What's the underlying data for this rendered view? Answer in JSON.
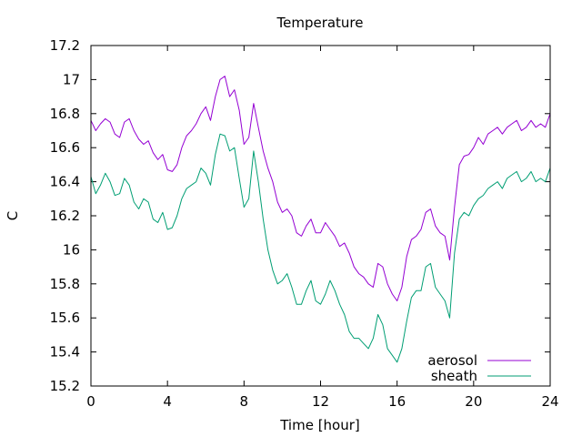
{
  "chart_data": {
    "type": "line",
    "title": "Temperature",
    "xlabel": "Time [hour]",
    "ylabel": "C",
    "xlim": [
      0,
      24
    ],
    "ylim": [
      15.2,
      17.2
    ],
    "xticks": [
      0,
      4,
      8,
      12,
      16,
      20,
      24
    ],
    "xtick_labels": [
      "0",
      "4",
      "8",
      "12",
      "16",
      "20",
      "24"
    ],
    "yticks": [
      15.2,
      15.4,
      15.6,
      15.8,
      16,
      16.2,
      16.4,
      16.6,
      16.8,
      17,
      17.2
    ],
    "ytick_labels": [
      "15.2",
      "15.4",
      "15.6",
      "15.8",
      "16",
      "16.2",
      "16.4",
      "16.6",
      "16.8",
      "17",
      "17.2"
    ],
    "grid": false,
    "legend_position": "bottom-right",
    "series": [
      {
        "name": "aerosol",
        "color": "#9400d3",
        "x": [
          0,
          0.25,
          0.5,
          0.75,
          1,
          1.25,
          1.5,
          1.75,
          2,
          2.25,
          2.5,
          2.75,
          3,
          3.25,
          3.5,
          3.75,
          4,
          4.25,
          4.5,
          4.75,
          5,
          5.25,
          5.5,
          5.75,
          6,
          6.25,
          6.5,
          6.75,
          7,
          7.25,
          7.5,
          7.75,
          8,
          8.25,
          8.5,
          8.75,
          9,
          9.25,
          9.5,
          9.75,
          10,
          10.25,
          10.5,
          10.75,
          11,
          11.25,
          11.5,
          11.75,
          12,
          12.25,
          12.5,
          12.75,
          13,
          13.25,
          13.5,
          13.75,
          14,
          14.25,
          14.5,
          14.75,
          15,
          15.25,
          15.5,
          15.75,
          16,
          16.25,
          16.5,
          16.75,
          17,
          17.25,
          17.5,
          17.75,
          18,
          18.25,
          18.5,
          18.75,
          19,
          19.25,
          19.5,
          19.75,
          20,
          20.25,
          20.5,
          20.75,
          21,
          21.25,
          21.5,
          21.75,
          22,
          22.25,
          22.5,
          22.75,
          23,
          23.25,
          23.5,
          23.75,
          24
        ],
        "values": [
          16.76,
          16.7,
          16.74,
          16.77,
          16.75,
          16.68,
          16.66,
          16.75,
          16.77,
          16.7,
          16.65,
          16.62,
          16.64,
          16.57,
          16.53,
          16.56,
          16.47,
          16.46,
          16.5,
          16.6,
          16.67,
          16.7,
          16.74,
          16.8,
          16.84,
          16.76,
          16.9,
          17.0,
          17.02,
          16.9,
          16.94,
          16.82,
          16.62,
          16.66,
          16.86,
          16.72,
          16.58,
          16.48,
          16.4,
          16.28,
          16.22,
          16.24,
          16.2,
          16.1,
          16.08,
          16.14,
          16.18,
          16.1,
          16.1,
          16.16,
          16.12,
          16.08,
          16.02,
          16.04,
          15.98,
          15.9,
          15.86,
          15.84,
          15.8,
          15.78,
          15.92,
          15.9,
          15.8,
          15.74,
          15.7,
          15.78,
          15.96,
          16.06,
          16.08,
          16.12,
          16.22,
          16.24,
          16.14,
          16.1,
          16.08,
          15.94,
          16.25,
          16.5,
          16.55,
          16.56,
          16.6,
          16.66,
          16.62,
          16.68,
          16.7,
          16.72,
          16.68,
          16.72,
          16.74,
          16.76,
          16.7,
          16.72,
          16.76,
          16.72,
          16.74,
          16.72,
          16.8
        ]
      },
      {
        "name": "sheath",
        "color": "#009e73",
        "x": [
          0,
          0.25,
          0.5,
          0.75,
          1,
          1.25,
          1.5,
          1.75,
          2,
          2.25,
          2.5,
          2.75,
          3,
          3.25,
          3.5,
          3.75,
          4,
          4.25,
          4.5,
          4.75,
          5,
          5.25,
          5.5,
          5.75,
          6,
          6.25,
          6.5,
          6.75,
          7,
          7.25,
          7.5,
          7.75,
          8,
          8.25,
          8.5,
          8.75,
          9,
          9.25,
          9.5,
          9.75,
          10,
          10.25,
          10.5,
          10.75,
          11,
          11.25,
          11.5,
          11.75,
          12,
          12.25,
          12.5,
          12.75,
          13,
          13.25,
          13.5,
          13.75,
          14,
          14.25,
          14.5,
          14.75,
          15,
          15.25,
          15.5,
          15.75,
          16,
          16.25,
          16.5,
          16.75,
          17,
          17.25,
          17.5,
          17.75,
          18,
          18.25,
          18.5,
          18.75,
          19,
          19.25,
          19.5,
          19.75,
          20,
          20.25,
          20.5,
          20.75,
          21,
          21.25,
          21.5,
          21.75,
          22,
          22.25,
          22.5,
          22.75,
          23,
          23.25,
          23.5,
          23.75,
          24
        ],
        "values": [
          16.43,
          16.33,
          16.38,
          16.45,
          16.4,
          16.32,
          16.33,
          16.42,
          16.38,
          16.28,
          16.24,
          16.3,
          16.28,
          16.18,
          16.16,
          16.22,
          16.12,
          16.13,
          16.2,
          16.3,
          16.36,
          16.38,
          16.4,
          16.48,
          16.45,
          16.38,
          16.56,
          16.68,
          16.67,
          16.58,
          16.6,
          16.42,
          16.25,
          16.3,
          16.58,
          16.4,
          16.18,
          16.0,
          15.88,
          15.8,
          15.82,
          15.86,
          15.78,
          15.68,
          15.68,
          15.76,
          15.82,
          15.7,
          15.68,
          15.74,
          15.82,
          15.76,
          15.68,
          15.62,
          15.52,
          15.48,
          15.48,
          15.45,
          15.42,
          15.48,
          15.62,
          15.56,
          15.42,
          15.38,
          15.34,
          15.42,
          15.58,
          15.72,
          15.76,
          15.76,
          15.9,
          15.92,
          15.78,
          15.74,
          15.7,
          15.6,
          15.98,
          16.18,
          16.22,
          16.2,
          16.26,
          16.3,
          16.32,
          16.36,
          16.38,
          16.4,
          16.36,
          16.42,
          16.44,
          16.46,
          16.4,
          16.42,
          16.46,
          16.4,
          16.42,
          16.4,
          16.48
        ]
      }
    ]
  }
}
